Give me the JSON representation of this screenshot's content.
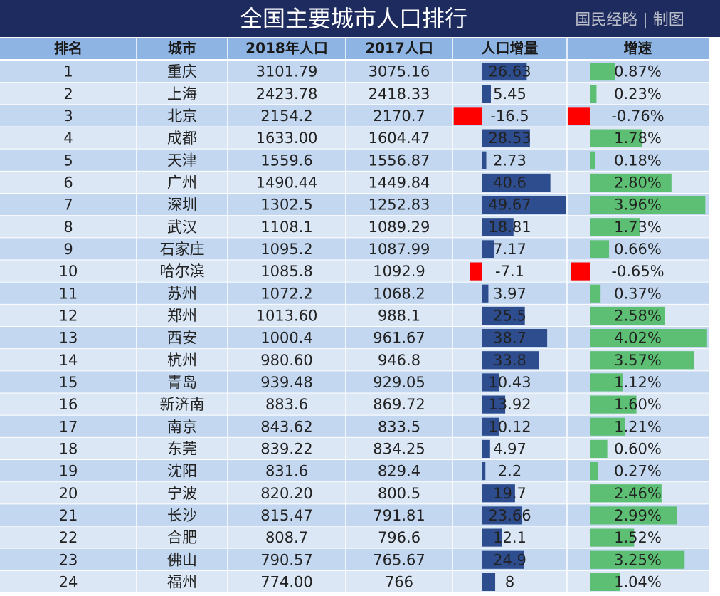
{
  "header": {
    "title": "全国主要城市人口排行",
    "credit": "国民经略 | 制图"
  },
  "table": {
    "columns": [
      "排名",
      "城市",
      "2018年人口",
      "2017人口",
      "人口增量",
      "增速"
    ],
    "rows": [
      [
        "1",
        "重庆",
        "3101.79",
        "3075.16",
        "26.63",
        "0.87%"
      ],
      [
        "2",
        "上海",
        "2423.78",
        "2418.33",
        "5.45",
        "0.23%"
      ],
      [
        "3",
        "北京",
        "2154.2",
        "2170.7",
        "-16.5",
        "-0.76%"
      ],
      [
        "4",
        "成都",
        "1633.00",
        "1604.47",
        "28.53",
        "1.78%"
      ],
      [
        "5",
        "天津",
        "1559.6",
        "1556.87",
        "2.73",
        "0.18%"
      ],
      [
        "6",
        "广州",
        "1490.44",
        "1449.84",
        "40.6",
        "2.80%"
      ],
      [
        "7",
        "深圳",
        "1302.5",
        "1252.83",
        "49.67",
        "3.96%"
      ],
      [
        "8",
        "武汉",
        "1108.1",
        "1089.29",
        "18.81",
        "1.73%"
      ],
      [
        "9",
        "石家庄",
        "1095.2",
        "1087.99",
        "7.17",
        "0.66%"
      ],
      [
        "10",
        "哈尔滨",
        "1085.8",
        "1092.9",
        "-7.1",
        "-0.65%"
      ],
      [
        "11",
        "苏州",
        "1072.2",
        "1068.2",
        "3.97",
        "0.37%"
      ],
      [
        "12",
        "郑州",
        "1013.60",
        "988.1",
        "25.5",
        "2.58%"
      ],
      [
        "13",
        "西安",
        "1000.4",
        "961.67",
        "38.7",
        "4.02%"
      ],
      [
        "14",
        "杭州",
        "980.60",
        "946.8",
        "33.8",
        "3.57%"
      ],
      [
        "15",
        "青岛",
        "939.48",
        "929.05",
        "10.43",
        "1.12%"
      ],
      [
        "16",
        "新济南",
        "883.6",
        "869.72",
        "13.92",
        "1.60%"
      ],
      [
        "17",
        "南京",
        "843.62",
        "833.5",
        "10.12",
        "1.21%"
      ],
      [
        "18",
        "东莞",
        "839.22",
        "834.25",
        "4.97",
        "0.60%"
      ],
      [
        "19",
        "沈阳",
        "831.6",
        "829.4",
        "2.2",
        "0.27%"
      ],
      [
        "20",
        "宁波",
        "820.20",
        "800.5",
        "19.7",
        "2.46%"
      ],
      [
        "21",
        "长沙",
        "815.47",
        "791.81",
        "23.66",
        "2.99%"
      ],
      [
        "22",
        "合肥",
        "808.7",
        "796.6",
        "12.1",
        "1.52%"
      ],
      [
        "23",
        "佛山",
        "790.57",
        "765.67",
        "24.9",
        "3.25%"
      ],
      [
        "24",
        "福州",
        "774.00",
        "766",
        "8",
        "1.04%"
      ]
    ]
  }
}
